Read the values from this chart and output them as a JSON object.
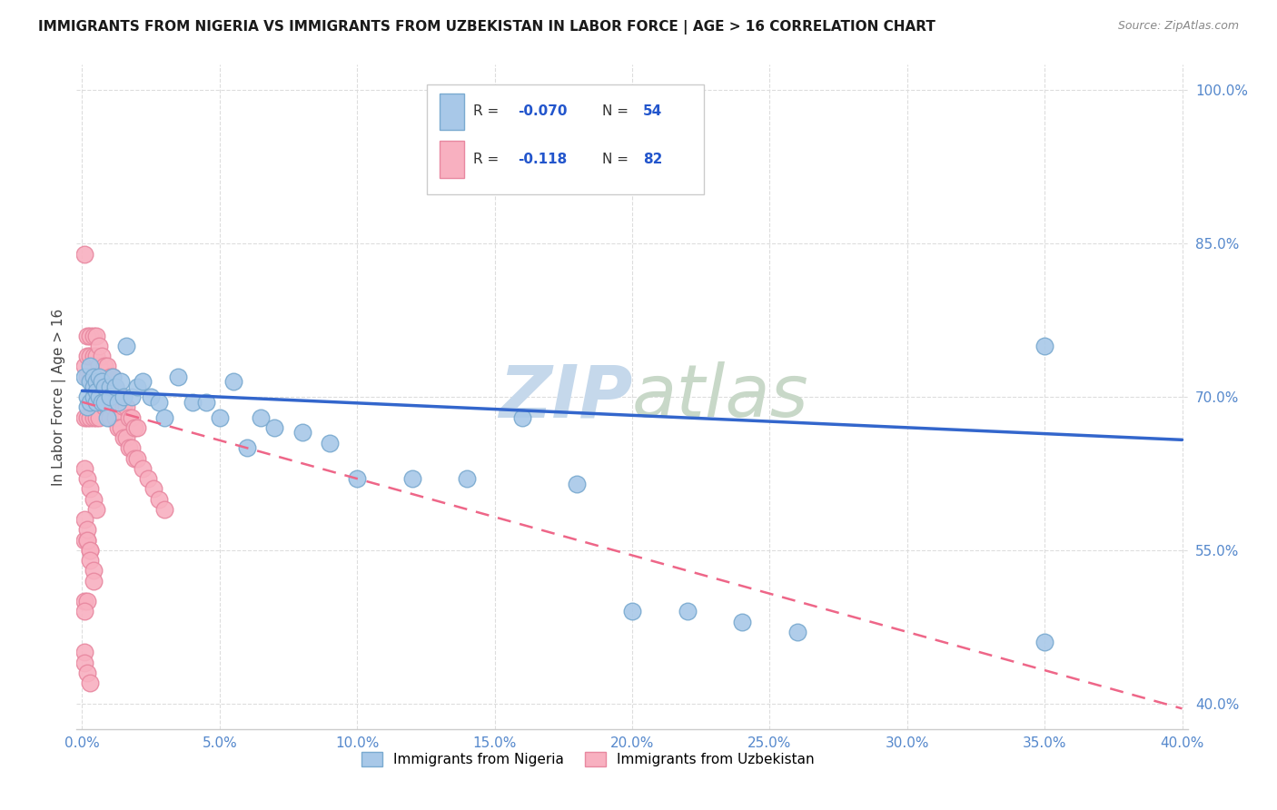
{
  "title": "IMMIGRANTS FROM NIGERIA VS IMMIGRANTS FROM UZBEKISTAN IN LABOR FORCE | AGE > 16 CORRELATION CHART",
  "source": "Source: ZipAtlas.com",
  "ylabel": "In Labor Force | Age > 16",
  "xmin": -0.002,
  "xmax": 0.402,
  "ymin": 0.375,
  "ymax": 1.025,
  "nigeria_color": "#a8c8e8",
  "nigeria_edge": "#7aaad0",
  "uzbekistan_color": "#f8b0c0",
  "uzbekistan_edge": "#e888a0",
  "trendline_nigeria_color": "#3366cc",
  "trendline_uzbekistan_color": "#ee6688",
  "watermark": "ZIPatlas",
  "watermark_color": "#d0e4f0",
  "nigeria_R": -0.07,
  "nigeria_N": 54,
  "uzbekistan_R": -0.118,
  "uzbekistan_N": 82,
  "ng_x": [
    0.001,
    0.002,
    0.002,
    0.003,
    0.003,
    0.003,
    0.004,
    0.004,
    0.004,
    0.005,
    0.005,
    0.005,
    0.006,
    0.006,
    0.007,
    0.007,
    0.008,
    0.008,
    0.009,
    0.01,
    0.01,
    0.011,
    0.012,
    0.013,
    0.014,
    0.015,
    0.016,
    0.018,
    0.02,
    0.022,
    0.025,
    0.028,
    0.03,
    0.035,
    0.04,
    0.045,
    0.05,
    0.055,
    0.06,
    0.065,
    0.07,
    0.08,
    0.09,
    0.1,
    0.12,
    0.14,
    0.16,
    0.18,
    0.2,
    0.22,
    0.24,
    0.26,
    0.35,
    0.35
  ],
  "ng_y": [
    0.72,
    0.7,
    0.69,
    0.715,
    0.73,
    0.695,
    0.72,
    0.7,
    0.71,
    0.695,
    0.715,
    0.705,
    0.7,
    0.72,
    0.715,
    0.695,
    0.71,
    0.695,
    0.68,
    0.71,
    0.7,
    0.72,
    0.71,
    0.695,
    0.715,
    0.7,
    0.75,
    0.7,
    0.71,
    0.715,
    0.7,
    0.695,
    0.68,
    0.72,
    0.695,
    0.695,
    0.68,
    0.715,
    0.65,
    0.68,
    0.67,
    0.665,
    0.655,
    0.62,
    0.62,
    0.62,
    0.68,
    0.615,
    0.49,
    0.49,
    0.48,
    0.47,
    0.75,
    0.46
  ],
  "uz_x": [
    0.001,
    0.001,
    0.001,
    0.002,
    0.002,
    0.002,
    0.002,
    0.003,
    0.003,
    0.003,
    0.003,
    0.004,
    0.004,
    0.004,
    0.004,
    0.005,
    0.005,
    0.005,
    0.005,
    0.006,
    0.006,
    0.006,
    0.006,
    0.007,
    0.007,
    0.007,
    0.008,
    0.008,
    0.008,
    0.009,
    0.009,
    0.009,
    0.01,
    0.01,
    0.01,
    0.011,
    0.011,
    0.012,
    0.012,
    0.013,
    0.013,
    0.014,
    0.014,
    0.015,
    0.015,
    0.016,
    0.016,
    0.017,
    0.017,
    0.018,
    0.018,
    0.019,
    0.019,
    0.02,
    0.02,
    0.022,
    0.024,
    0.026,
    0.028,
    0.03,
    0.001,
    0.002,
    0.003,
    0.004,
    0.005,
    0.001,
    0.002,
    0.003,
    0.001,
    0.002,
    0.001,
    0.001,
    0.002,
    0.002,
    0.003,
    0.003,
    0.004,
    0.004,
    0.001,
    0.001,
    0.002,
    0.003
  ],
  "uz_y": [
    0.84,
    0.73,
    0.68,
    0.76,
    0.74,
    0.72,
    0.68,
    0.76,
    0.74,
    0.72,
    0.68,
    0.76,
    0.74,
    0.72,
    0.68,
    0.76,
    0.74,
    0.72,
    0.68,
    0.75,
    0.73,
    0.71,
    0.68,
    0.74,
    0.72,
    0.7,
    0.73,
    0.71,
    0.69,
    0.73,
    0.71,
    0.69,
    0.72,
    0.7,
    0.68,
    0.72,
    0.69,
    0.71,
    0.68,
    0.7,
    0.67,
    0.7,
    0.67,
    0.69,
    0.66,
    0.69,
    0.66,
    0.68,
    0.65,
    0.68,
    0.65,
    0.67,
    0.64,
    0.67,
    0.64,
    0.63,
    0.62,
    0.61,
    0.6,
    0.59,
    0.63,
    0.62,
    0.61,
    0.6,
    0.59,
    0.56,
    0.56,
    0.55,
    0.5,
    0.5,
    0.49,
    0.58,
    0.57,
    0.56,
    0.55,
    0.54,
    0.53,
    0.52,
    0.45,
    0.44,
    0.43,
    0.42
  ],
  "ng_trend_x": [
    0.0,
    0.4
  ],
  "ng_trend_y": [
    0.706,
    0.658
  ],
  "uz_trend_x": [
    0.0,
    0.4
  ],
  "uz_trend_y": [
    0.695,
    0.395
  ],
  "xlabel_ticks": [
    0.0,
    0.05,
    0.1,
    0.15,
    0.2,
    0.25,
    0.3,
    0.35,
    0.4
  ],
  "xlabel_labels": [
    "0.0%",
    "5.0%",
    "10.0%",
    "15.0%",
    "20.0%",
    "25.0%",
    "30.0%",
    "35.0%",
    "40.0%"
  ],
  "ylabel_ticks": [
    0.4,
    0.55,
    0.7,
    0.85,
    1.0
  ],
  "ylabel_labels": [
    "40.0%",
    "55.0%",
    "70.0%",
    "85.0%",
    "100.0%"
  ],
  "grid_color": "#dddddd",
  "spine_color": "#cccccc",
  "tick_color": "#5588cc",
  "title_fontsize": 11,
  "axis_label_fontsize": 11,
  "tick_fontsize": 11,
  "source_fontsize": 9,
  "legend_bottom_labels": [
    "Immigrants from Nigeria",
    "Immigrants from Uzbekistan"
  ]
}
